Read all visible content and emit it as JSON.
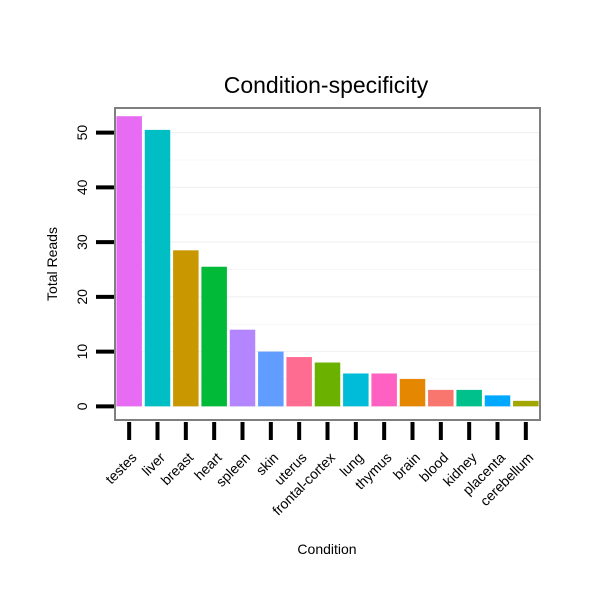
{
  "chart_data": {
    "type": "bar",
    "title": "Condition-specificity",
    "xlabel": "Condition",
    "ylabel": "Total Reads",
    "ylim": [
      -2.5,
      54.5
    ],
    "yticks": [
      0,
      10,
      20,
      30,
      40,
      50
    ],
    "categories": [
      "testes",
      "liver",
      "breast",
      "heart",
      "spleen",
      "skin",
      "uterus",
      "frontal-cortex",
      "lung",
      "thymus",
      "brain",
      "blood",
      "kidney",
      "placenta",
      "cerebellum"
    ],
    "values": [
      53,
      50.5,
      28.5,
      25.5,
      14,
      10,
      9,
      8,
      6,
      6,
      5,
      3,
      3,
      2,
      1
    ],
    "colors": [
      "#E76BF3",
      "#00BFC4",
      "#C99800",
      "#00BA38",
      "#B385FF",
      "#619CFF",
      "#FF6C91",
      "#6BB100",
      "#00BCD8",
      "#FF61C3",
      "#E58700",
      "#F8766D",
      "#00C08B",
      "#00A9FF",
      "#A3A500"
    ],
    "grid": true,
    "legend": "none"
  }
}
